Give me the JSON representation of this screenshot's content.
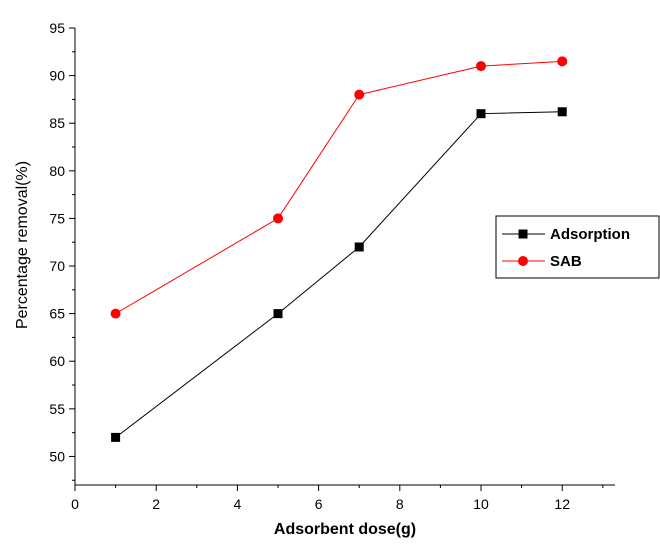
{
  "chart_data": {
    "type": "line",
    "xlabel": "Adsorbent dose(g)",
    "ylabel": "Percentage removal(%)",
    "xlim": [
      0,
      13.3
    ],
    "ylim": [
      47,
      95
    ],
    "x_ticks": [
      0,
      2,
      4,
      6,
      8,
      10,
      12
    ],
    "x_tick_labels": [
      "0",
      "2",
      "4",
      "6",
      "8",
      "10",
      "12"
    ],
    "y_ticks": [
      50,
      55,
      60,
      65,
      70,
      75,
      80,
      85,
      90,
      95
    ],
    "y_tick_labels": [
      "50",
      "55",
      "60",
      "65",
      "70",
      "75",
      "80",
      "85",
      "90",
      "95"
    ],
    "legend_position": "right",
    "series": [
      {
        "name": "Adsorption",
        "color": "#000000",
        "marker": "square",
        "x": [
          1,
          5,
          7,
          10,
          12
        ],
        "values": [
          52,
          65,
          72,
          86,
          86.2
        ]
      },
      {
        "name": "SAB",
        "color": "#ff0000",
        "marker": "circle",
        "x": [
          1,
          5,
          7,
          10,
          12
        ],
        "values": [
          65,
          75,
          88,
          91,
          91.5
        ]
      }
    ]
  }
}
